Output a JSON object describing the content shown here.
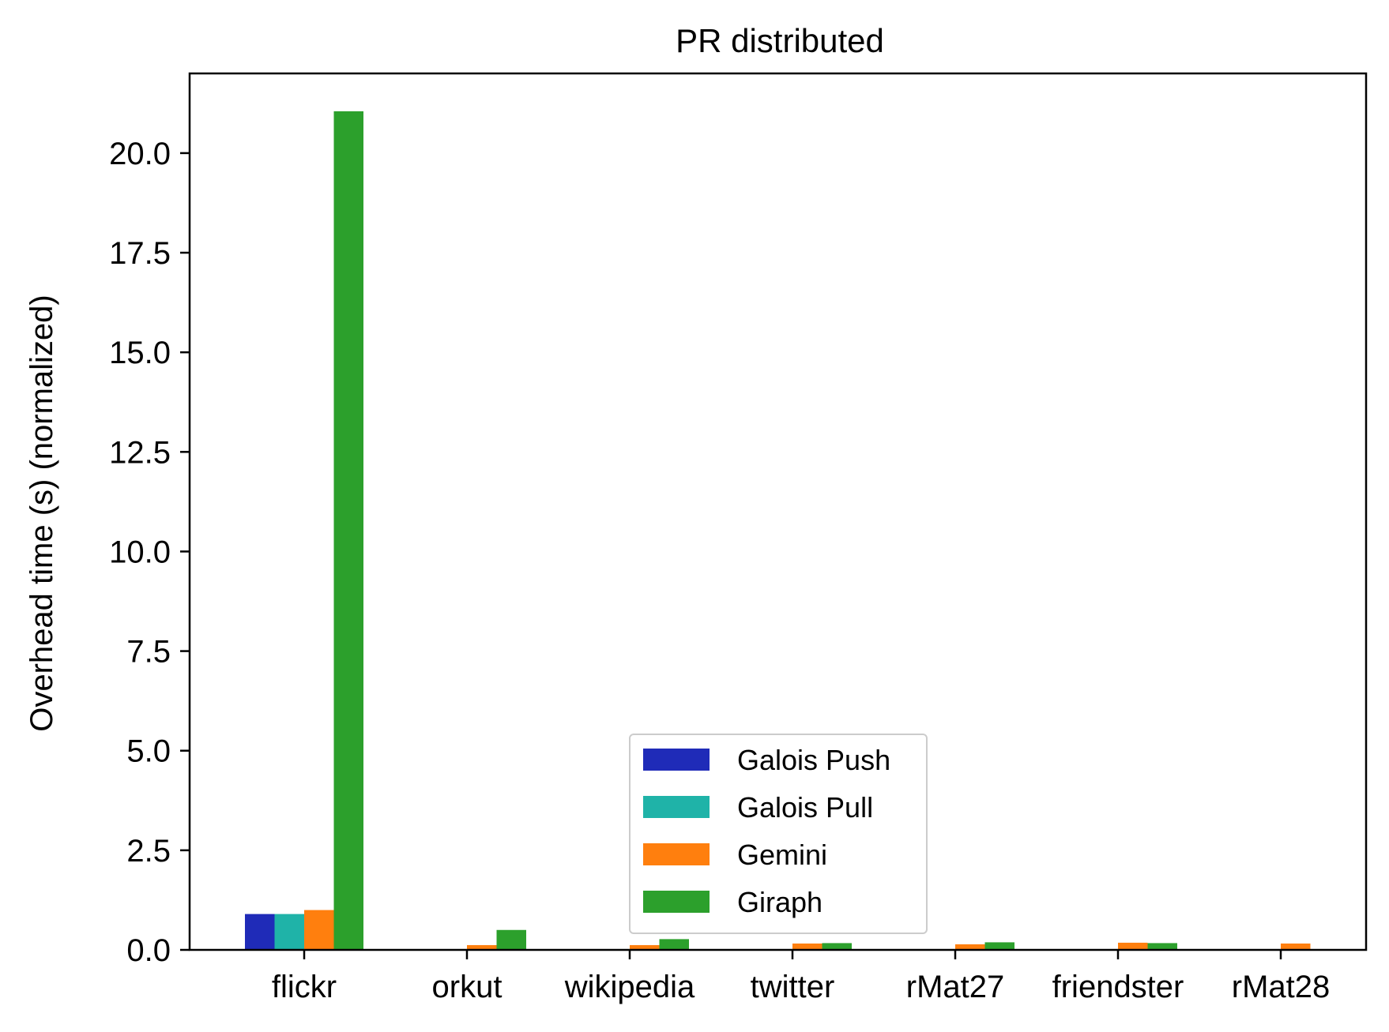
{
  "chart_data": {
    "type": "bar",
    "title": "PR distributed",
    "xlabel": "",
    "ylabel": "Overhead time (s) (normalized)",
    "ylim": [
      0,
      22.0
    ],
    "yticks": [
      0.0,
      2.5,
      5.0,
      7.5,
      10.0,
      12.5,
      15.0,
      17.5,
      20.0
    ],
    "ytick_labels": [
      "0.0",
      "2.5",
      "5.0",
      "7.5",
      "10.0",
      "12.5",
      "15.0",
      "17.5",
      "20.0"
    ],
    "categories": [
      "flickr",
      "orkut",
      "wikipedia",
      "twitter",
      "rMat27",
      "friendster",
      "rMat28"
    ],
    "series": [
      {
        "name": "Galois Push",
        "color": "#1f2bb8",
        "values": [
          0.9,
          0,
          0,
          0,
          0,
          0,
          0
        ]
      },
      {
        "name": "Galois Pull",
        "color": "#1fb3a8",
        "values": [
          0.9,
          0,
          0,
          0,
          0,
          0,
          0
        ]
      },
      {
        "name": "Gemini",
        "color": "#ff7f0e",
        "values": [
          1.0,
          0.12,
          0.12,
          0.16,
          0.14,
          0.18,
          0.16
        ]
      },
      {
        "name": "Giraph",
        "color": "#2ca02c",
        "values": [
          21.05,
          0.5,
          0.27,
          0.17,
          0.19,
          0.17,
          0
        ]
      }
    ],
    "legend_position": "lower center",
    "grid": false
  }
}
